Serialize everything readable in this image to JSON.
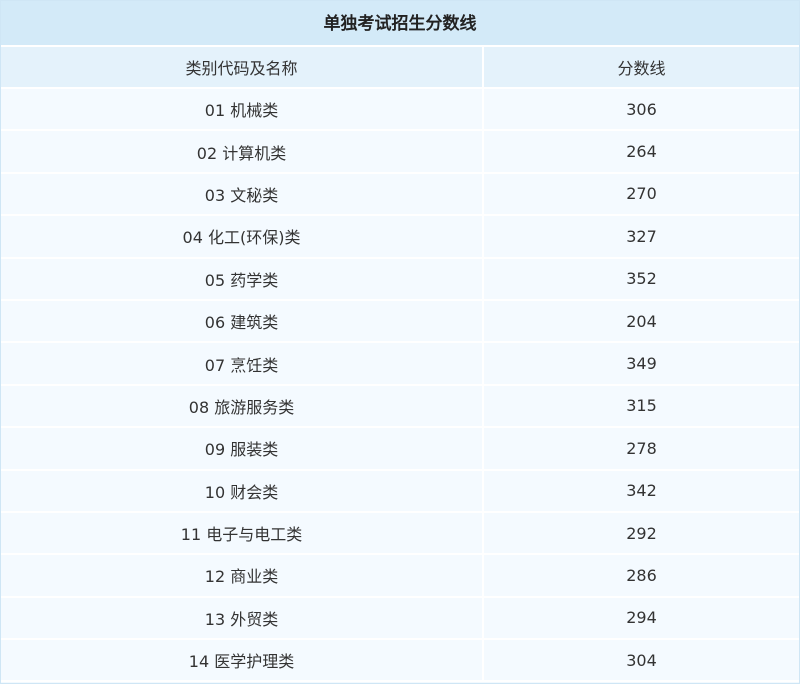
{
  "table": {
    "title": "单独考试招生分数线",
    "header": [
      "类别代码及名称",
      "分数线"
    ],
    "rows": [
      [
        "01 机械类",
        306
      ],
      [
        "02 计算机类",
        264
      ],
      [
        "03 文秘类",
        270
      ],
      [
        "04 化工(环保)类",
        327
      ],
      [
        "05 药学类",
        352
      ],
      [
        "06 建筑类",
        204
      ],
      [
        "07 烹饪类",
        349
      ],
      [
        "08 旅游服务类",
        315
      ],
      [
        "09 服装类",
        278
      ],
      [
        "10 财会类",
        342
      ],
      [
        "11 电子与电工类",
        292
      ],
      [
        "12 商业类",
        286
      ],
      [
        "13 外贸类",
        294
      ],
      [
        "14 医学护理类",
        304
      ]
    ]
  }
}
